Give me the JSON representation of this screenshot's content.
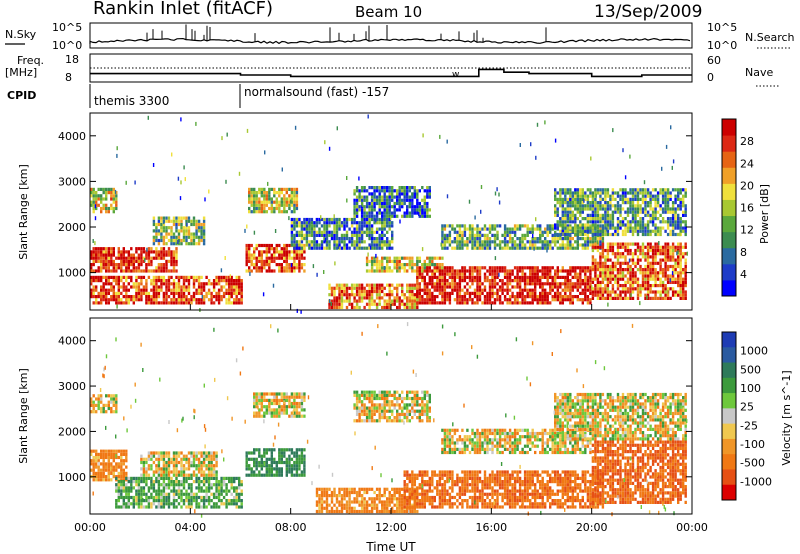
{
  "header": {
    "station": "Rankin Inlet (fitACF)",
    "beam": "Beam 10",
    "date": "13/Sep/2009"
  },
  "noise_panel": {
    "left_label": "N.Sky",
    "left_ticks": [
      "10^5",
      "10^0"
    ],
    "right_label": "N.Search",
    "right_ticks": [
      "10^5",
      "10^0"
    ]
  },
  "freq_panel": {
    "left_label_line1": "Freq.",
    "left_label_line2": "[MHz]",
    "left_ticks": [
      "18",
      "8"
    ],
    "right_label": "Nave",
    "right_ticks": [
      "60",
      "0"
    ],
    "marker": "w"
  },
  "cpid": {
    "label": "CPID",
    "segments": [
      {
        "name": "themis 3300",
        "start_hour": 0
      },
      {
        "name": "normalsound (fast) -157",
        "start_hour": 6
      }
    ]
  },
  "x_axis": {
    "title": "Time UT",
    "ticks": [
      "00:00",
      "04:00",
      "08:00",
      "12:00",
      "16:00",
      "20:00",
      "00:00"
    ]
  },
  "power_panel": {
    "ylabel": "Slant Range [km]",
    "yticks": [
      "1000",
      "2000",
      "3000",
      "4000"
    ],
    "colorbar_label": "Power [dB]",
    "colorbar_ticks": [
      "4",
      "8",
      "12",
      "16",
      "20",
      "24",
      "28"
    ],
    "colors": [
      "#0000ff",
      "#1e3cc8",
      "#2a6aa0",
      "#3c8c50",
      "#5aa83c",
      "#a8c832",
      "#f0e03c",
      "#f0a028",
      "#e66414",
      "#dc2814",
      "#cc0000"
    ]
  },
  "velocity_panel": {
    "ylabel": "Slant Range [km]",
    "yticks": [
      "1000",
      "2000",
      "3000",
      "4000"
    ],
    "colorbar_label": "Velocity [m s^-1]",
    "colorbar_ticks": [
      "1000",
      "500",
      "100",
      "25",
      "-25",
      "-100",
      "-500",
      "-1000"
    ],
    "colors": [
      "#1e3cb4",
      "#2a5aa0",
      "#2e7a5a",
      "#3c9a3c",
      "#6ec83c",
      "#c8c8c8",
      "#f0c850",
      "#f09628",
      "#f07814",
      "#e65014",
      "#dc0000"
    ]
  },
  "chart_data": {
    "type": "heatmap",
    "x_unit": "hours UT",
    "xlim": [
      0,
      24
    ],
    "ylim": [
      180,
      4500
    ],
    "power_regions": [
      {
        "t0": 0.0,
        "t1": 3.5,
        "r0": 1000,
        "r1": 1550,
        "level": 0.9
      },
      {
        "t0": 0.0,
        "t1": 6.0,
        "r0": 300,
        "r1": 900,
        "level": 0.85
      },
      {
        "t0": 0.0,
        "t1": 1.0,
        "r0": 2300,
        "r1": 2800,
        "level": 0.55
      },
      {
        "t0": 2.5,
        "t1": 4.5,
        "r0": 1600,
        "r1": 2200,
        "level": 0.45
      },
      {
        "t0": 6.2,
        "t1": 8.5,
        "r0": 1000,
        "r1": 1600,
        "level": 0.85
      },
      {
        "t0": 6.3,
        "t1": 8.2,
        "r0": 2300,
        "r1": 2800,
        "level": 0.5
      },
      {
        "t0": 8.0,
        "t1": 12.0,
        "r0": 1500,
        "r1": 2200,
        "level": 0.3
      },
      {
        "t0": 10.5,
        "t1": 13.5,
        "r0": 2200,
        "r1": 2900,
        "level": 0.25
      },
      {
        "t0": 9.5,
        "t1": 13.0,
        "r0": 200,
        "r1": 700,
        "level": 0.75
      },
      {
        "t0": 11.0,
        "t1": 14.0,
        "r0": 1000,
        "r1": 1300,
        "level": 0.55
      },
      {
        "t0": 13.0,
        "t1": 20.0,
        "r0": 300,
        "r1": 1100,
        "level": 0.95
      },
      {
        "t0": 14.0,
        "t1": 20.5,
        "r0": 1500,
        "r1": 2000,
        "level": 0.4
      },
      {
        "t0": 18.5,
        "t1": 23.8,
        "r0": 1800,
        "r1": 2800,
        "level": 0.35
      },
      {
        "t0": 20.0,
        "t1": 23.8,
        "r0": 400,
        "r1": 1600,
        "level": 0.8
      }
    ],
    "velocity_regions": [
      {
        "t0": 0.0,
        "t1": 1.5,
        "r0": 900,
        "r1": 1600,
        "v": -150
      },
      {
        "t0": 0.0,
        "t1": 1.0,
        "r0": 2400,
        "r1": 2800,
        "v": 0
      },
      {
        "t0": 1.0,
        "t1": 6.0,
        "r0": 300,
        "r1": 1000,
        "v": 150
      },
      {
        "t0": 2.0,
        "t1": 5.0,
        "r0": 1000,
        "r1": 1500,
        "v": 0
      },
      {
        "t0": 6.2,
        "t1": 8.5,
        "r0": 1000,
        "r1": 1600,
        "v": 250
      },
      {
        "t0": 6.5,
        "t1": 8.5,
        "r0": 2300,
        "r1": 2800,
        "v": 0
      },
      {
        "t0": 9.0,
        "t1": 13.0,
        "r0": 200,
        "r1": 700,
        "v": -150
      },
      {
        "t0": 10.5,
        "t1": 13.5,
        "r0": 2200,
        "r1": 2900,
        "v": 0
      },
      {
        "t0": 12.5,
        "t1": 20.5,
        "r0": 300,
        "r1": 1100,
        "v": -250
      },
      {
        "t0": 14.0,
        "t1": 20.0,
        "r0": 1500,
        "r1": 2000,
        "v": 0
      },
      {
        "t0": 20.0,
        "t1": 23.8,
        "r0": 400,
        "r1": 1800,
        "v": -300
      },
      {
        "t0": 18.5,
        "t1": 23.8,
        "r0": 1800,
        "r1": 2800,
        "v": 0
      }
    ],
    "freq_mhz_steps": [
      {
        "t0": 0.0,
        "t1": 6.0,
        "f": 11.0
      },
      {
        "t0": 6.0,
        "t1": 8.0,
        "f": 10.5
      },
      {
        "t0": 8.0,
        "t1": 15.5,
        "f": 10.0
      },
      {
        "t0": 15.5,
        "t1": 16.5,
        "f": 12.5
      },
      {
        "t0": 16.5,
        "t1": 17.5,
        "f": 11.5
      },
      {
        "t0": 17.5,
        "t1": 20.0,
        "f": 11.0
      },
      {
        "t0": 20.0,
        "t1": 22.0,
        "f": 10.0
      },
      {
        "t0": 22.0,
        "t1": 24.0,
        "f": 10.5
      }
    ]
  }
}
